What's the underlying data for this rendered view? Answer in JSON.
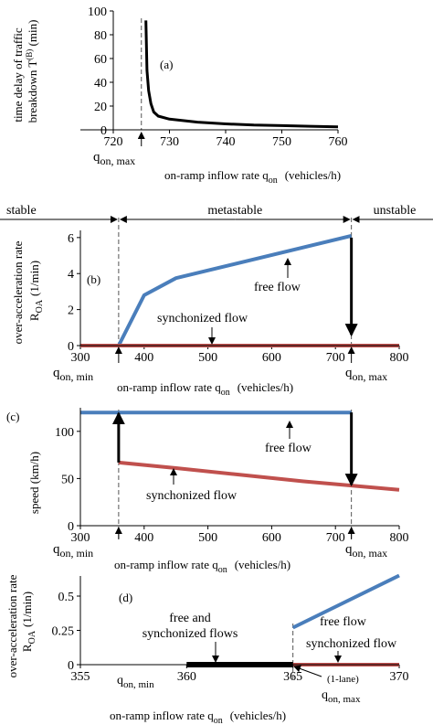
{
  "chart_data": [
    {
      "panel_label": "(a)",
      "type": "line",
      "xlabel": "on-ramp inflow rate q",
      "xlabel_sub": "on",
      "xlabel_units": "(vehicles/h)",
      "ylabel_line1": "time delay of traffic",
      "ylabel_line2": "breakdown T",
      "ylabel_sup": "(B)",
      "ylabel_units": "(min)",
      "xlim": [
        720,
        760
      ],
      "ylim": [
        0,
        100
      ],
      "xticks": [
        "720",
        "730",
        "740",
        "750",
        "760"
      ],
      "yticks": [
        "0",
        "20",
        "40",
        "60",
        "80",
        "100"
      ],
      "marker_text": "q",
      "marker_sub": "on, max",
      "marker_x": 725,
      "series": [
        {
          "color": "#000000",
          "points": [
            [
              725.8,
              92
            ],
            [
              726,
              50
            ],
            [
              726.3,
              33
            ],
            [
              726.7,
              22
            ],
            [
              727.2,
              15
            ],
            [
              728,
              11.5
            ],
            [
              730,
              9
            ],
            [
              735,
              6.5
            ],
            [
              740,
              5
            ],
            [
              745,
              4
            ],
            [
              750,
              3.5
            ],
            [
              755,
              3
            ],
            [
              760,
              2.5
            ]
          ]
        }
      ]
    },
    {
      "panel_label": "(b)",
      "type": "line",
      "xlabel": "on-ramp inflow rate q",
      "xlabel_sub": "on",
      "xlabel_units": "(vehicles/h)",
      "ylabel_line1": "over-acceleration rate",
      "ylabel_line2": "R",
      "ylabel_sub": "OA",
      "ylabel_units": "(1/min)",
      "xlim": [
        300,
        800
      ],
      "ylim": [
        0,
        6.5
      ],
      "xticks": [
        "300",
        "400",
        "500",
        "600",
        "700",
        "800"
      ],
      "yticks": [
        "0",
        "2",
        "4",
        "6"
      ],
      "regions": [
        "stable",
        "metastable",
        "unstable"
      ],
      "region_bounds": [
        360,
        725
      ],
      "markers": [
        {
          "text": "q",
          "sub": "on, min",
          "x": 360
        },
        {
          "text": "q",
          "sub": "on, max",
          "x": 725
        }
      ],
      "series": [
        {
          "name": "free flow",
          "color": "#4a7ebb",
          "points": [
            [
              360,
              0
            ],
            [
              400,
              2.8
            ],
            [
              450,
              3.75
            ],
            [
              725,
              6.1
            ]
          ]
        },
        {
          "name": "synchonized flow",
          "color": "#c0504d",
          "points": [
            [
              300,
              0
            ],
            [
              800,
              0
            ]
          ]
        }
      ]
    },
    {
      "panel_label": "(c)",
      "type": "line",
      "xlabel": "on-ramp inflow rate q",
      "xlabel_sub": "on",
      "xlabel_units": "(vehicles/h)",
      "ylabel_line1": "speed (km/h)",
      "xlim": [
        300,
        800
      ],
      "ylim": [
        0,
        125
      ],
      "xticks": [
        "300",
        "400",
        "500",
        "600",
        "700",
        "800"
      ],
      "yticks": [
        "0",
        "50",
        "100"
      ],
      "markers": [
        {
          "text": "q",
          "sub": "on, min",
          "x": 360
        },
        {
          "text": "q",
          "sub": "on, max",
          "x": 725
        }
      ],
      "series": [
        {
          "name": "free flow",
          "color": "#4a7ebb",
          "points": [
            [
              300,
              120
            ],
            [
              725,
              120
            ]
          ]
        },
        {
          "name": "synchonized flow",
          "color": "#c0504d",
          "points": [
            [
              360,
              67
            ],
            [
              450,
              61
            ],
            [
              550,
              54
            ],
            [
              650,
              47
            ],
            [
              725,
              42.5
            ],
            [
              800,
              38
            ]
          ]
        }
      ]
    },
    {
      "panel_label": "(d)",
      "type": "line",
      "xlabel": "on-ramp inflow rate q",
      "xlabel_sub": "on",
      "xlabel_units": "(vehicles/h)",
      "ylabel_line1": "over-acceleration rate",
      "ylabel_line2": "R",
      "ylabel_sub": "OA",
      "ylabel_units": "(1/min)",
      "xlim": [
        355,
        370
      ],
      "ylim": [
        0,
        0.7
      ],
      "xticks": [
        "355",
        "360",
        "365",
        "370"
      ],
      "yticks": [
        "0",
        "0.25",
        "0.5"
      ],
      "markers": [
        {
          "text": "q",
          "sub": "on, min",
          "x": 359.3
        },
        {
          "text": "q",
          "sub": "on, max",
          "sup": "(1-lane)",
          "x": 365
        }
      ],
      "series": [
        {
          "name": "free flow",
          "color": "#4a7ebb",
          "points": [
            [
              365,
              0.27
            ],
            [
              370,
              0.65
            ]
          ]
        },
        {
          "name": "synchonized flow",
          "color": "#c0504d",
          "points": [
            [
              365,
              0
            ],
            [
              370,
              0
            ]
          ]
        },
        {
          "name": "free and synchonized flows",
          "color": "#000000",
          "points": [
            [
              360,
              0
            ],
            [
              365,
              0
            ]
          ]
        }
      ],
      "annotation_both_line1": "free and",
      "annotation_both_line2": "synchonized flows"
    }
  ]
}
